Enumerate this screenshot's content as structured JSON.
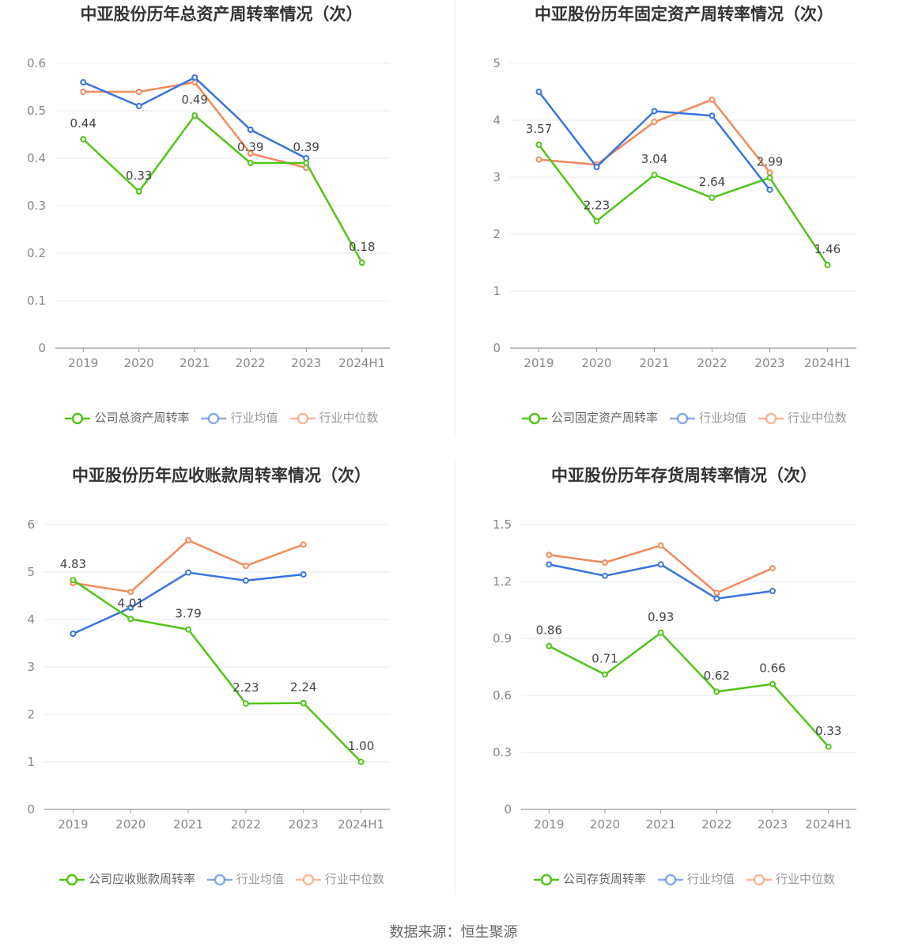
{
  "source": "数据来源：恒生聚源",
  "chart_data": [
    {
      "type": "line",
      "title": "中亚股份历年总资产周转率情况（次）",
      "categories": [
        "2019",
        "2020",
        "2021",
        "2022",
        "2023",
        "2024H1"
      ],
      "ylim": [
        0,
        0.6
      ],
      "yticks": [
        "0",
        "0.1",
        "0.2",
        "0.3",
        "0.4",
        "0.5",
        "0.6"
      ],
      "grid": true,
      "legend_position": "bottom",
      "series": [
        {
          "name": "公司总资产周转率",
          "color": "#52c41a",
          "values": [
            0.44,
            0.33,
            0.49,
            0.39,
            0.39,
            0.18
          ],
          "labels": [
            "0.44",
            "0.33",
            "0.49",
            "0.39",
            "0.39",
            "0.18"
          ]
        },
        {
          "name": "行业均值",
          "color": "#3a74de",
          "values": [
            0.56,
            0.51,
            0.57,
            0.46,
            0.4,
            null
          ]
        },
        {
          "name": "行业中位数",
          "color": "#f28a5c",
          "values": [
            0.54,
            0.54,
            0.56,
            0.41,
            0.38,
            null
          ]
        }
      ]
    },
    {
      "type": "line",
      "title": "中亚股份历年固定资产周转率情况（次）",
      "categories": [
        "2019",
        "2020",
        "2021",
        "2022",
        "2023",
        "2024H1"
      ],
      "ylim": [
        0,
        5
      ],
      "yticks": [
        "0",
        "1",
        "2",
        "3",
        "4",
        "5"
      ],
      "grid": true,
      "legend_position": "bottom",
      "series": [
        {
          "name": "公司固定资产周转率",
          "color": "#52c41a",
          "values": [
            3.57,
            2.23,
            3.04,
            2.64,
            2.99,
            1.46
          ],
          "labels": [
            "3.57",
            "2.23",
            "3.04",
            "2.64",
            "2.99",
            "1.46"
          ]
        },
        {
          "name": "行业均值",
          "color": "#3a74de",
          "values": [
            4.5,
            3.18,
            4.16,
            4.08,
            2.78,
            null
          ]
        },
        {
          "name": "行业中位数",
          "color": "#f28a5c",
          "values": [
            3.31,
            3.22,
            3.97,
            4.36,
            3.08,
            null
          ]
        }
      ]
    },
    {
      "type": "line",
      "title": "中亚股份历年应收账款周转率情况（次）",
      "categories": [
        "2019",
        "2020",
        "2021",
        "2022",
        "2023",
        "2024H1"
      ],
      "ylim": [
        0,
        6
      ],
      "yticks": [
        "0",
        "1",
        "2",
        "3",
        "4",
        "5",
        "6"
      ],
      "grid": true,
      "legend_position": "bottom",
      "series": [
        {
          "name": "公司应收账款周转率",
          "color": "#52c41a",
          "values": [
            4.83,
            4.01,
            3.79,
            2.23,
            2.24,
            1.0
          ],
          "labels": [
            "4.83",
            "4.01",
            "3.79",
            "2.23",
            "2.24",
            "1.00"
          ]
        },
        {
          "name": "行业均值",
          "color": "#3a74de",
          "values": [
            3.7,
            4.25,
            4.99,
            4.82,
            4.95,
            null
          ]
        },
        {
          "name": "行业中位数",
          "color": "#f28a5c",
          "values": [
            4.77,
            4.58,
            5.67,
            5.13,
            5.58,
            null
          ]
        }
      ]
    },
    {
      "type": "line",
      "title": "中亚股份历年存货周转率情况（次）",
      "categories": [
        "2019",
        "2020",
        "2021",
        "2022",
        "2023",
        "2024H1"
      ],
      "ylim": [
        0,
        1.5
      ],
      "yticks": [
        "0",
        "0.3",
        "0.6",
        "0.9",
        "1.2",
        "1.5"
      ],
      "grid": true,
      "legend_position": "bottom",
      "series": [
        {
          "name": "公司存货周转率",
          "color": "#52c41a",
          "values": [
            0.86,
            0.71,
            0.93,
            0.62,
            0.66,
            0.33
          ],
          "labels": [
            "0.86",
            "0.71",
            "0.93",
            "0.62",
            "0.66",
            "0.33"
          ]
        },
        {
          "name": "行业均值",
          "color": "#3a74de",
          "values": [
            1.29,
            1.23,
            1.29,
            1.11,
            1.15,
            null
          ]
        },
        {
          "name": "行业中位数",
          "color": "#f28a5c",
          "values": [
            1.34,
            1.3,
            1.39,
            1.14,
            1.27,
            null
          ]
        }
      ]
    }
  ]
}
